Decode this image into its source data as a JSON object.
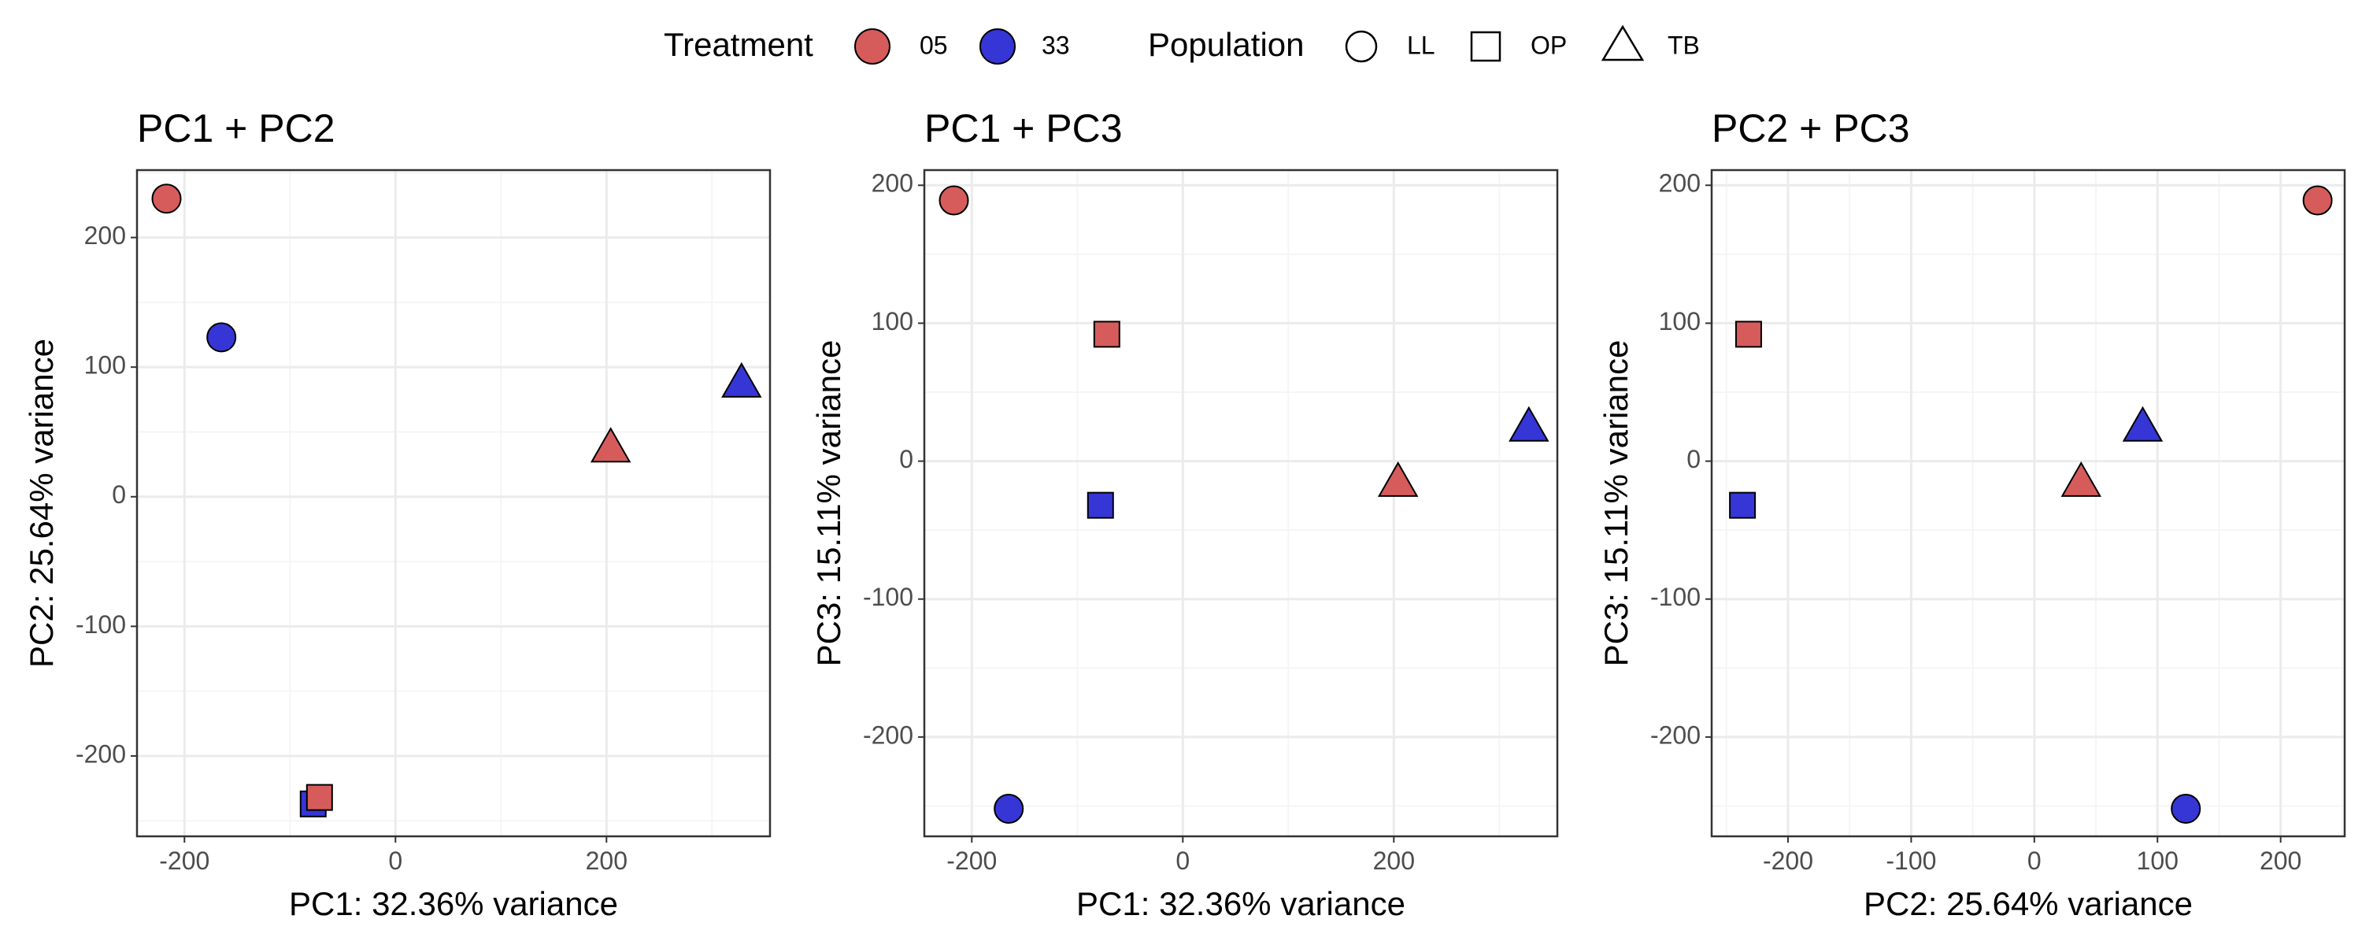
{
  "legend": {
    "treatment": {
      "title": "Treatment",
      "items": [
        {
          "label": "05",
          "color": "#d65c5c"
        },
        {
          "label": "33",
          "color": "#3636d6"
        }
      ]
    },
    "population": {
      "title": "Population",
      "items": [
        {
          "label": "LL",
          "shape": "circle"
        },
        {
          "label": "OP",
          "shape": "square"
        },
        {
          "label": "TB",
          "shape": "triangle"
        }
      ]
    },
    "placement": "top"
  },
  "colors": {
    "05": "#d65c5c",
    "33": "#3636d6",
    "outline": "#000000",
    "grid_major": "#ebebeb",
    "grid_minor": "#f5f5f5"
  },
  "chart_data": [
    {
      "type": "scatter",
      "title": "PC1 + PC2",
      "xlabel": "PC1: 32.36% variance",
      "ylabel": "PC2: 25.64% variance",
      "xlim": [
        -245,
        355
      ],
      "ylim": [
        -262,
        252
      ],
      "xticks": [
        -200,
        0,
        200
      ],
      "yticks": [
        200,
        100,
        0,
        -100,
        -200
      ],
      "grid": true,
      "points": [
        {
          "treatment": "05",
          "population": "LL",
          "x": -217,
          "y": 230
        },
        {
          "treatment": "33",
          "population": "LL",
          "x": -165,
          "y": 123
        },
        {
          "treatment": "05",
          "population": "TB",
          "x": 204,
          "y": 38
        },
        {
          "treatment": "33",
          "population": "TB",
          "x": 328,
          "y": 88
        },
        {
          "treatment": "33",
          "population": "OP",
          "x": -78,
          "y": -237
        },
        {
          "treatment": "05",
          "population": "OP",
          "x": -72,
          "y": -232
        }
      ]
    },
    {
      "type": "scatter",
      "title": "PC1 + PC3",
      "xlabel": "PC1: 32.36% variance",
      "ylabel": "PC3: 15.11% variance",
      "xlim": [
        -245,
        355
      ],
      "ylim": [
        -272,
        211
      ],
      "xticks": [
        -200,
        0,
        200
      ],
      "yticks": [
        200,
        100,
        0,
        -100,
        -200
      ],
      "grid": true,
      "points": [
        {
          "treatment": "05",
          "population": "LL",
          "x": -217,
          "y": 189
        },
        {
          "treatment": "05",
          "population": "OP",
          "x": -72,
          "y": 92
        },
        {
          "treatment": "33",
          "population": "OP",
          "x": -78,
          "y": -32
        },
        {
          "treatment": "05",
          "population": "TB",
          "x": 204,
          "y": -15
        },
        {
          "treatment": "33",
          "population": "TB",
          "x": 328,
          "y": 25
        },
        {
          "treatment": "33",
          "population": "LL",
          "x": -165,
          "y": -252
        }
      ]
    },
    {
      "type": "scatter",
      "title": "PC2 + PC3",
      "xlabel": "PC2: 25.64% variance",
      "ylabel": "PC3: 15.11% variance",
      "xlim": [
        -262,
        252
      ],
      "ylim": [
        -272,
        211
      ],
      "xticks": [
        -200,
        -100,
        0,
        100,
        200
      ],
      "yticks": [
        200,
        100,
        0,
        -100,
        -200
      ],
      "grid": true,
      "points": [
        {
          "treatment": "05",
          "population": "LL",
          "x": 230,
          "y": 189
        },
        {
          "treatment": "05",
          "population": "OP",
          "x": -232,
          "y": 92
        },
        {
          "treatment": "33",
          "population": "OP",
          "x": -237,
          "y": -32
        },
        {
          "treatment": "05",
          "population": "TB",
          "x": 38,
          "y": -15
        },
        {
          "treatment": "33",
          "population": "TB",
          "x": 88,
          "y": 25
        },
        {
          "treatment": "33",
          "population": "LL",
          "x": 123,
          "y": -252
        }
      ]
    }
  ]
}
